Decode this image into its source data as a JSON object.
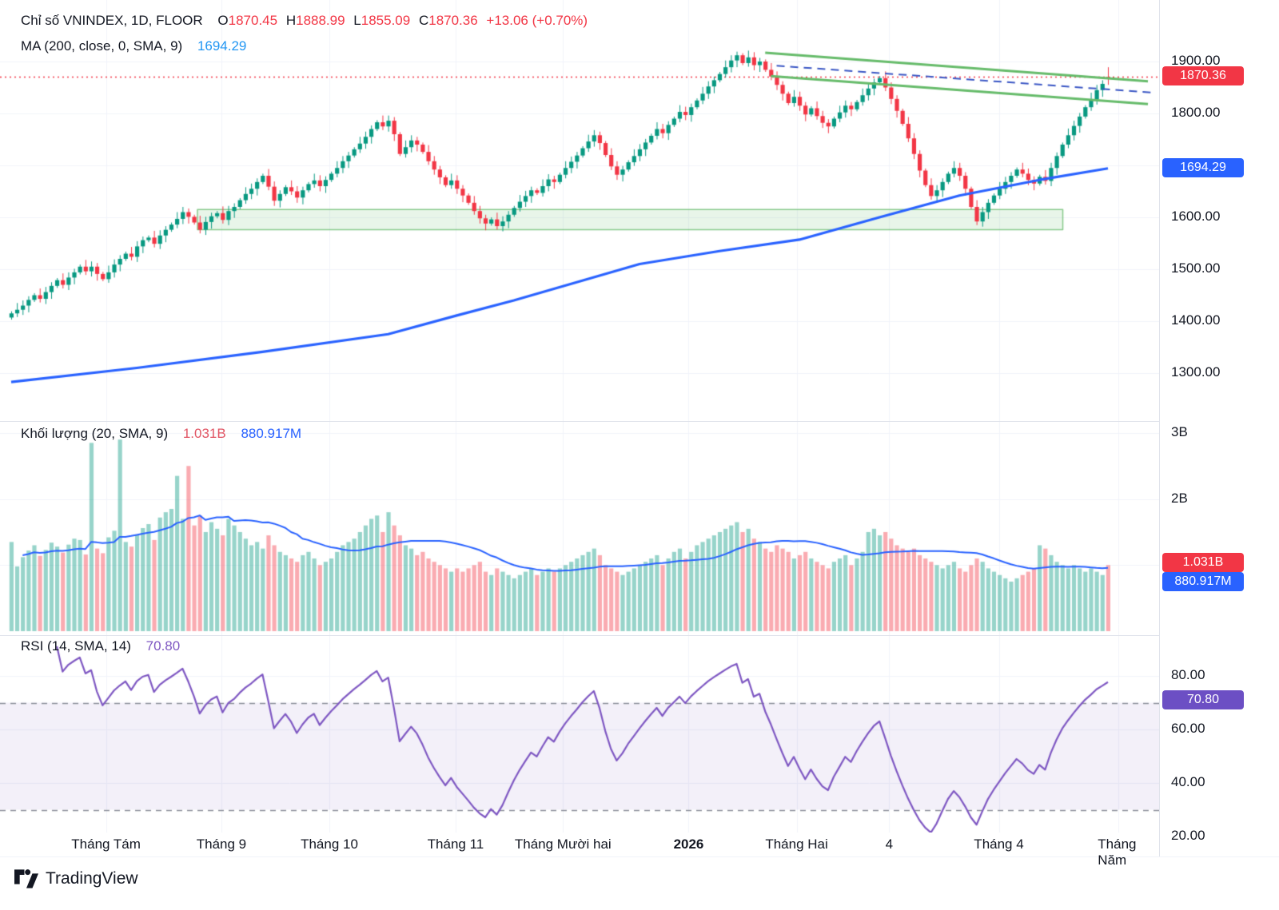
{
  "header": {
    "title": "Chỉ số VNINDEX, 1D, FLOOR",
    "o_label": "O",
    "o_value": "1870.45",
    "h_label": "H",
    "h_value": "1888.99",
    "l_label": "L",
    "l_value": "1855.09",
    "c_label": "C",
    "c_value": "1870.36",
    "change": "+13.06 (+0.70%)",
    "ma_label": "MA (200, close, 0, SMA, 9)",
    "ma_value": "1694.29"
  },
  "volume_legend": {
    "label": "Khối lượng (20, SMA, 9)",
    "value_red": "1.031B",
    "value_blue": "880.917M"
  },
  "rsi_legend": {
    "label": "RSI (14, SMA, 14)",
    "value": "70.80"
  },
  "price_axis": {
    "ticks": [
      "1900.00",
      "1800.00",
      "1600.00",
      "1500.00",
      "1400.00",
      "1300.00"
    ],
    "tick_values": [
      1900,
      1800,
      1600,
      1500,
      1400,
      1300
    ],
    "last_price_badge": {
      "text": "1870.36",
      "value": 1870.36,
      "color": "#f23645"
    },
    "ma_badge": {
      "text": "1694.29",
      "value": 1694.29,
      "color": "#2962ff"
    }
  },
  "volume_axis": {
    "ticks": [
      "3B",
      "2B"
    ],
    "tick_values": [
      3000,
      2000
    ],
    "badges": [
      {
        "text": "1.031B",
        "value": 1031,
        "color": "#f23645"
      },
      {
        "text": "880.917M",
        "value": 881,
        "color": "#2962ff"
      }
    ]
  },
  "rsi_axis": {
    "ticks": [
      "80.00",
      "60.00",
      "40.00",
      "20.00"
    ],
    "tick_values": [
      80,
      60,
      40,
      20
    ],
    "badge": {
      "text": "70.80",
      "value": 70.8,
      "color": "#6c4fc4"
    }
  },
  "time_axis": {
    "labels": [
      {
        "text": "Tháng Tám",
        "i": 16.6,
        "bold": false
      },
      {
        "text": "Tháng 9",
        "i": 36.8,
        "bold": false
      },
      {
        "text": "Tháng 10",
        "i": 55.7,
        "bold": false
      },
      {
        "text": "Tháng 11",
        "i": 77.8,
        "bold": false
      },
      {
        "text": "Tháng Mười hai",
        "i": 96.6,
        "bold": false
      },
      {
        "text": "2026",
        "i": 118.6,
        "bold": true
      },
      {
        "text": "Tháng Hai",
        "i": 137.5,
        "bold": false
      },
      {
        "text": "4",
        "i": 153.7,
        "bold": false
      },
      {
        "text": "Tháng 4",
        "i": 172.9,
        "bold": false
      },
      {
        "text": "Tháng Năm",
        "i": 193.8,
        "bold": false
      }
    ]
  },
  "footer": {
    "logo_text": "TradingView"
  },
  "chart_data": {
    "type": "candlestick",
    "title": "Chỉ số VNINDEX, 1D, FLOOR",
    "panels": [
      "price",
      "volume",
      "rsi"
    ],
    "price_ylim": [
      1208,
      2018
    ],
    "volume_ylim_millions": [
      0,
      3300
    ],
    "rsi_ylim": [
      20,
      95
    ],
    "last_candle": {
      "o": 1870.45,
      "h": 1888.99,
      "l": 1855.09,
      "c": 1870.36
    },
    "last_close": 1870.36,
    "ma200_last": 1694.29,
    "volume_sma20_last_millions": 1031,
    "volume_sma9_last_millions": 880.917,
    "rsi_last": 70.8,
    "closes": [
      1415,
      1422,
      1430,
      1441,
      1450,
      1443,
      1456,
      1468,
      1479,
      1470,
      1484,
      1494,
      1505,
      1496,
      1505,
      1491,
      1481,
      1494,
      1509,
      1520,
      1530,
      1524,
      1544,
      1556,
      1561,
      1549,
      1565,
      1576,
      1586,
      1597,
      1610,
      1601,
      1590,
      1576,
      1591,
      1602,
      1608,
      1595,
      1612,
      1620,
      1633,
      1645,
      1655,
      1668,
      1680,
      1659,
      1632,
      1645,
      1658,
      1650,
      1638,
      1652,
      1664,
      1671,
      1660,
      1672,
      1684,
      1695,
      1708,
      1719,
      1731,
      1742,
      1755,
      1770,
      1783,
      1775,
      1786,
      1760,
      1722,
      1735,
      1748,
      1740,
      1726,
      1708,
      1692,
      1677,
      1662,
      1671,
      1655,
      1642,
      1628,
      1612,
      1598,
      1588,
      1596,
      1583,
      1592,
      1605,
      1618,
      1630,
      1641,
      1652,
      1647,
      1660,
      1673,
      1668,
      1682,
      1695,
      1707,
      1719,
      1733,
      1746,
      1758,
      1743,
      1720,
      1698,
      1682,
      1692,
      1706,
      1718,
      1731,
      1744,
      1757,
      1770,
      1762,
      1778,
      1790,
      1803,
      1797,
      1812,
      1825,
      1838,
      1852,
      1864,
      1876,
      1889,
      1902,
      1912,
      1897,
      1908,
      1893,
      1900,
      1884,
      1871,
      1855,
      1838,
      1820,
      1832,
      1815,
      1798,
      1810,
      1795,
      1782,
      1775,
      1790,
      1802,
      1815,
      1808,
      1822,
      1835,
      1848,
      1860,
      1868,
      1850,
      1828,
      1805,
      1780,
      1752,
      1722,
      1690,
      1662,
      1641,
      1652,
      1668,
      1684,
      1695,
      1680,
      1655,
      1620,
      1592,
      1610,
      1628,
      1642,
      1655,
      1668,
      1680,
      1692,
      1684,
      1672,
      1665,
      1678,
      1670,
      1695,
      1718,
      1740,
      1758,
      1776,
      1794,
      1812,
      1827,
      1845,
      1857,
      1870.36
    ],
    "volumes_millions": [
      1350,
      980,
      1120,
      1220,
      1300,
      1140,
      1230,
      1340,
      1280,
      1190,
      1310,
      1400,
      1380,
      1160,
      2850,
      1250,
      1180,
      1420,
      1520,
      2900,
      1350,
      1280,
      1460,
      1560,
      1620,
      1380,
      1720,
      1800,
      1850,
      2350,
      1700,
      2500,
      1600,
      1750,
      1500,
      1650,
      1550,
      1450,
      1700,
      1600,
      1500,
      1400,
      1300,
      1350,
      1250,
      1450,
      1300,
      1200,
      1150,
      1100,
      1050,
      1150,
      1200,
      1100,
      1000,
      1050,
      1100,
      1200,
      1300,
      1350,
      1400,
      1500,
      1600,
      1700,
      1750,
      1500,
      1800,
      1600,
      1450,
      1300,
      1250,
      1150,
      1200,
      1100,
      1050,
      1000,
      950,
      900,
      950,
      900,
      950,
      1000,
      1050,
      900,
      850,
      950,
      900,
      850,
      800,
      850,
      900,
      950,
      850,
      900,
      950,
      900,
      950,
      1000,
      1050,
      1100,
      1150,
      1200,
      1250,
      1150,
      1000,
      950,
      900,
      850,
      900,
      950,
      1000,
      1050,
      1100,
      1150,
      1000,
      1100,
      1200,
      1250,
      1100,
      1200,
      1300,
      1350,
      1400,
      1450,
      1500,
      1550,
      1600,
      1650,
      1500,
      1550,
      1400,
      1350,
      1250,
      1200,
      1300,
      1250,
      1200,
      1100,
      1150,
      1200,
      1100,
      1050,
      1000,
      950,
      1050,
      1100,
      1150,
      1000,
      1100,
      1200,
      1500,
      1550,
      1450,
      1500,
      1400,
      1300,
      1250,
      1200,
      1250,
      1150,
      1100,
      1050,
      1000,
      950,
      1000,
      1050,
      950,
      900,
      1000,
      1100,
      1050,
      950,
      900,
      850,
      800,
      750,
      800,
      850,
      900,
      950,
      1300,
      1250,
      1150,
      1050,
      1000,
      950,
      1000,
      950,
      900,
      950,
      900,
      850,
      1000
    ],
    "ma200_keypoints": [
      [
        0,
        1283
      ],
      [
        22,
        1310
      ],
      [
        44,
        1341
      ],
      [
        66,
        1375
      ],
      [
        78,
        1411
      ],
      [
        88,
        1440
      ],
      [
        110,
        1510
      ],
      [
        124,
        1535
      ],
      [
        138,
        1557
      ],
      [
        152,
        1600
      ],
      [
        166,
        1642
      ],
      [
        180,
        1672
      ],
      [
        192,
        1694.29
      ]
    ],
    "support_box": {
      "i1": 32.6,
      "i2": 184.1,
      "price_top": 1615,
      "price_bottom": 1576
    },
    "trendlines": [
      {
        "name": "upper-channel",
        "i1": 132,
        "p1": 1917,
        "i2": 199,
        "p2": 1862,
        "color": "#66bb6a",
        "width": 3,
        "dash": []
      },
      {
        "name": "lower-channel",
        "i1": 133,
        "p1": 1872,
        "i2": 199,
        "p2": 1818,
        "color": "#66bb6a",
        "width": 3,
        "dash": []
      },
      {
        "name": "blue-dashed",
        "i1": 134,
        "p1": 1892,
        "i2": 200,
        "p2": 1840,
        "color": "#3a56c4",
        "width": 2,
        "dash": [
          10,
          7
        ]
      }
    ],
    "last_price_line": {
      "value": 1870.36,
      "color": "#f23645"
    },
    "rsi_levels": {
      "upper": 70,
      "lower": 30
    },
    "colors": {
      "up": "#089981",
      "down": "#f23645",
      "vol_up": "rgba(8,153,129,0.42)",
      "vol_down": "rgba(242,54,69,0.42)",
      "ma200": "#2962ff",
      "vol_ma": "#2962ff",
      "rsi": "#7e57c2",
      "rsi_band": "rgba(126,87,194,0.09)",
      "grid": "#f0f3fa",
      "dashed": "#8a8e99"
    }
  }
}
